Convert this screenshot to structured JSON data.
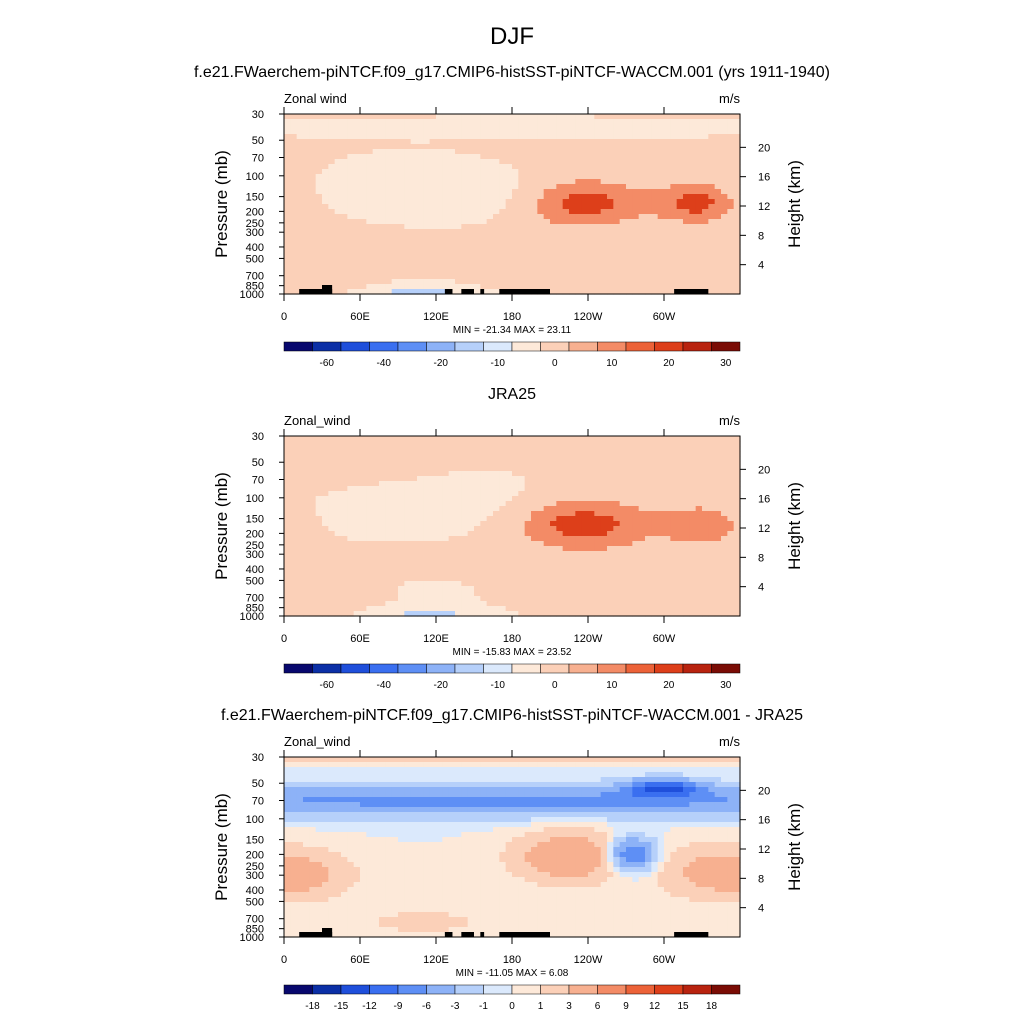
{
  "figure_title": "DJF",
  "colors": {
    "diverging": [
      "#08086e",
      "#0b2fa6",
      "#1f4fdb",
      "#3a6ff0",
      "#5e8ff5",
      "#8db2f7",
      "#b6d0fa",
      "#dbe9fc",
      "#fde9d9",
      "#fbd0b8",
      "#f7b090",
      "#f38b66",
      "#ec6238",
      "#dd3f1a",
      "#b8230f",
      "#7a0c05"
    ],
    "land": "#000000"
  },
  "chart_data": [
    {
      "type": "heatmap",
      "panel_title": "f.e21.FWaerchem-piNTCF.f09_g17.CMIP6-histSST-piNTCF-WACCM.001 (yrs 1911-1940)",
      "left_label": "Zonal wind",
      "right_label": "m/s",
      "ylabel": "Pressure (mb)",
      "ylabel_right": "Height (km)",
      "x_ticks": [
        "0",
        "60E",
        "120E",
        "180",
        "120W",
        "60W"
      ],
      "y_ticks": [
        "30",
        "50",
        "70",
        "100",
        "150",
        "200",
        "250",
        "300",
        "400",
        "500",
        "700",
        "850",
        "1000"
      ],
      "height_ticks": [
        "20",
        "16",
        "12",
        "8",
        "4"
      ],
      "stats": "MIN = -21.34  MAX =  23.11",
      "levels": [
        "-60",
        "-40",
        "-20",
        "-10",
        "0",
        "10",
        "20",
        "30"
      ],
      "blobs": [
        {
          "lon": 10,
          "p": 0,
          "amp": 2.5,
          "sl": 150,
          "sp": 0.9
        },
        {
          "lon": 105,
          "p": 0,
          "amp": -18,
          "sl": 28,
          "sp": 0.22
        },
        {
          "lon": 90,
          "p": 0,
          "amp": -6,
          "sl": 50,
          "sp": 0.45
        },
        {
          "lon": 180,
          "p": 0,
          "amp": -6,
          "sl": 40,
          "sp": 0.3
        },
        {
          "lon": 235,
          "p": 0,
          "amp": 24,
          "sl": 34,
          "sp": 0.32
        },
        {
          "lon": 325,
          "p": 0,
          "amp": 22,
          "sl": 20,
          "sp": 0.26
        },
        {
          "lon": 90,
          "p": 0,
          "amp": 7,
          "sl": 60,
          "sp": 0.18
        },
        {
          "lon": 180,
          "p": 0,
          "amp": -3,
          "sl": 200,
          "sp": 0.12
        }
      ],
      "blob_p": [
        150,
        1000,
        130,
        150,
        170,
        170,
        750,
        40
      ],
      "topo": true
    },
    {
      "type": "heatmap",
      "panel_title": "JRA25",
      "left_label": "Zonal_wind",
      "right_label": "m/s",
      "ylabel": "Pressure (mb)",
      "ylabel_right": "Height (km)",
      "x_ticks": [
        "0",
        "60E",
        "120E",
        "180",
        "120W",
        "60W"
      ],
      "y_ticks": [
        "30",
        "50",
        "70",
        "100",
        "150",
        "200",
        "250",
        "300",
        "400",
        "500",
        "700",
        "850",
        "1000"
      ],
      "height_ticks": [
        "20",
        "16",
        "12",
        "8",
        "4"
      ],
      "stats": "MIN = -15.83  MAX =  23.52",
      "levels": [
        "-60",
        "-40",
        "-20",
        "-10",
        "0",
        "10",
        "20",
        "30"
      ],
      "blobs": [
        {
          "lon": 10,
          "p": 0,
          "amp": 3,
          "sl": 150,
          "sp": 0.9
        },
        {
          "lon": 115,
          "p": 0,
          "amp": -15,
          "sl": 30,
          "sp": 0.3
        },
        {
          "lon": 60,
          "p": 0,
          "amp": -4,
          "sl": 60,
          "sp": 0.5
        },
        {
          "lon": 160,
          "p": 0,
          "amp": -4,
          "sl": 40,
          "sp": 0.4
        },
        {
          "lon": 235,
          "p": 0,
          "amp": 24,
          "sl": 36,
          "sp": 0.34
        },
        {
          "lon": 330,
          "p": 0,
          "amp": 17,
          "sl": 22,
          "sp": 0.26
        },
        {
          "lon": 90,
          "p": 0,
          "amp": 5,
          "sl": 70,
          "sp": 0.16
        },
        {
          "lon": 180,
          "p": 0,
          "amp": 2,
          "sl": 200,
          "sp": 0.12
        }
      ],
      "blob_p": [
        150,
        1000,
        140,
        120,
        170,
        170,
        750,
        40
      ],
      "topo": false
    },
    {
      "type": "heatmap",
      "panel_title": "f.e21.FWaerchem-piNTCF.f09_g17.CMIP6-histSST-piNTCF-WACCM.001 - JRA25",
      "left_label": "Zonal_wind",
      "right_label": "m/s",
      "ylabel": "Pressure (mb)",
      "ylabel_right": "Height (km)",
      "x_ticks": [
        "0",
        "60E",
        "120E",
        "180",
        "120W",
        "60W"
      ],
      "y_ticks": [
        "30",
        "50",
        "70",
        "100",
        "150",
        "200",
        "250",
        "300",
        "400",
        "500",
        "700",
        "850",
        "1000"
      ],
      "height_ticks": [
        "20",
        "16",
        "12",
        "8",
        "4"
      ],
      "stats": "MIN = -11.05  MAX =  6.08",
      "levels": [
        "-18",
        "-15",
        "-12",
        "-9",
        "-6",
        "-3",
        "-1",
        "0",
        "1",
        "3",
        "6",
        "9",
        "12",
        "15",
        "18"
      ],
      "blobs": [
        {
          "lon": 180,
          "p": 0,
          "amp": -7,
          "sl": 300,
          "sp": 0.2
        },
        {
          "lon": 300,
          "p": 0,
          "amp": -11,
          "sl": 20,
          "sp": 0.12
        },
        {
          "lon": 225,
          "p": 0,
          "amp": 6,
          "sl": 28,
          "sp": 0.32
        },
        {
          "lon": 275,
          "p": 0,
          "amp": -10,
          "sl": 12,
          "sp": 0.22
        },
        {
          "lon": 20,
          "p": 0,
          "amp": 3,
          "sl": 25,
          "sp": 0.3
        },
        {
          "lon": 340,
          "p": 0,
          "amp": 4,
          "sl": 30,
          "sp": 0.35
        },
        {
          "lon": 110,
          "p": 0,
          "amp": 3,
          "sl": 25,
          "sp": 0.12
        },
        {
          "lon": 180,
          "p": 0,
          "amp": 2,
          "sl": 300,
          "sp": 0.05
        }
      ],
      "blob_p": [
        70,
        55,
        210,
        200,
        300,
        280,
        750,
        30
      ],
      "topo": true
    }
  ]
}
